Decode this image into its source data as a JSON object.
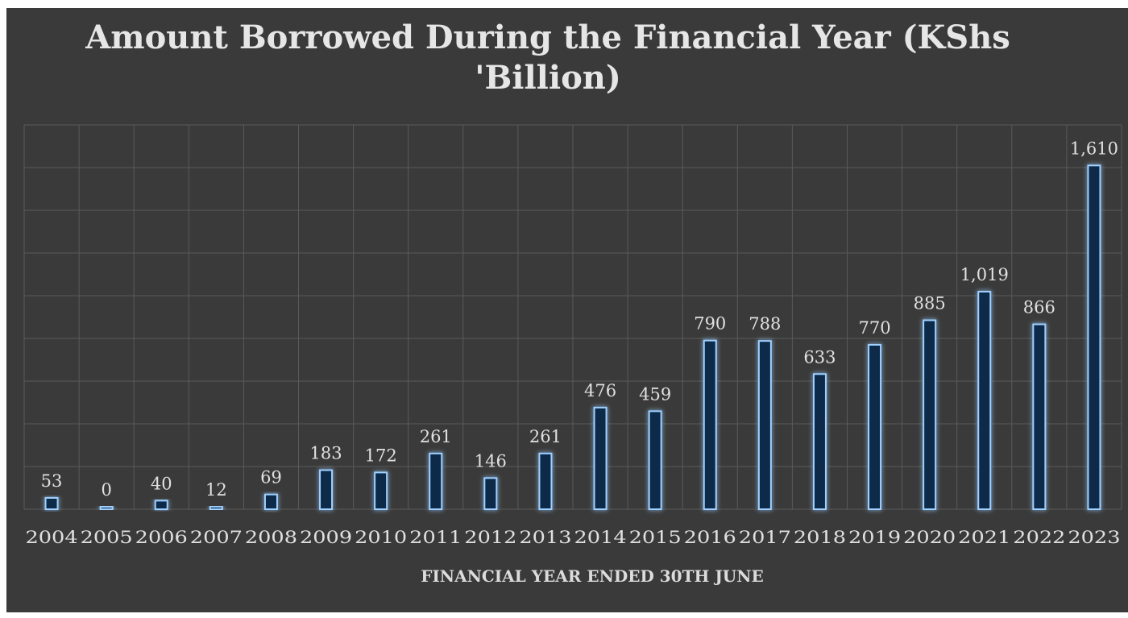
{
  "chart_data": {
    "type": "bar",
    "title_lines": [
      "Amount Borrowed During the Financial Year (KShs",
      "'Billion)"
    ],
    "xlabel": "FINANCIAL YEAR ENDED 30TH JUNE",
    "ylabel": "",
    "categories": [
      "2004",
      "2005",
      "2006",
      "2007",
      "2008",
      "2009",
      "2010",
      "2011",
      "2012",
      "2013",
      "2014",
      "2015",
      "2016",
      "2017",
      "2018",
      "2019",
      "2020",
      "2021",
      "2022",
      "2023"
    ],
    "values": [
      53,
      0,
      40,
      12,
      69,
      183,
      172,
      261,
      146,
      261,
      476,
      459,
      790,
      788,
      633,
      770,
      885,
      1019,
      866,
      1610
    ],
    "data_labels": [
      "53",
      "0",
      "40",
      "12",
      "69",
      "183",
      "172",
      "261",
      "146",
      "261",
      "476",
      "459",
      "790",
      "788",
      "633",
      "770",
      "885",
      "1,019",
      "866",
      "1,610"
    ],
    "ylim": [
      0,
      1800
    ],
    "grid": true,
    "legend": "none",
    "colors": {
      "background": "#3a3a3a",
      "bar_fill": "#0e2a4a",
      "bar_stroke": "#9fd0ff",
      "bar_glow": "#3d8ee0",
      "grid": "#5a5a5a",
      "text": "#e0e0e0"
    }
  }
}
